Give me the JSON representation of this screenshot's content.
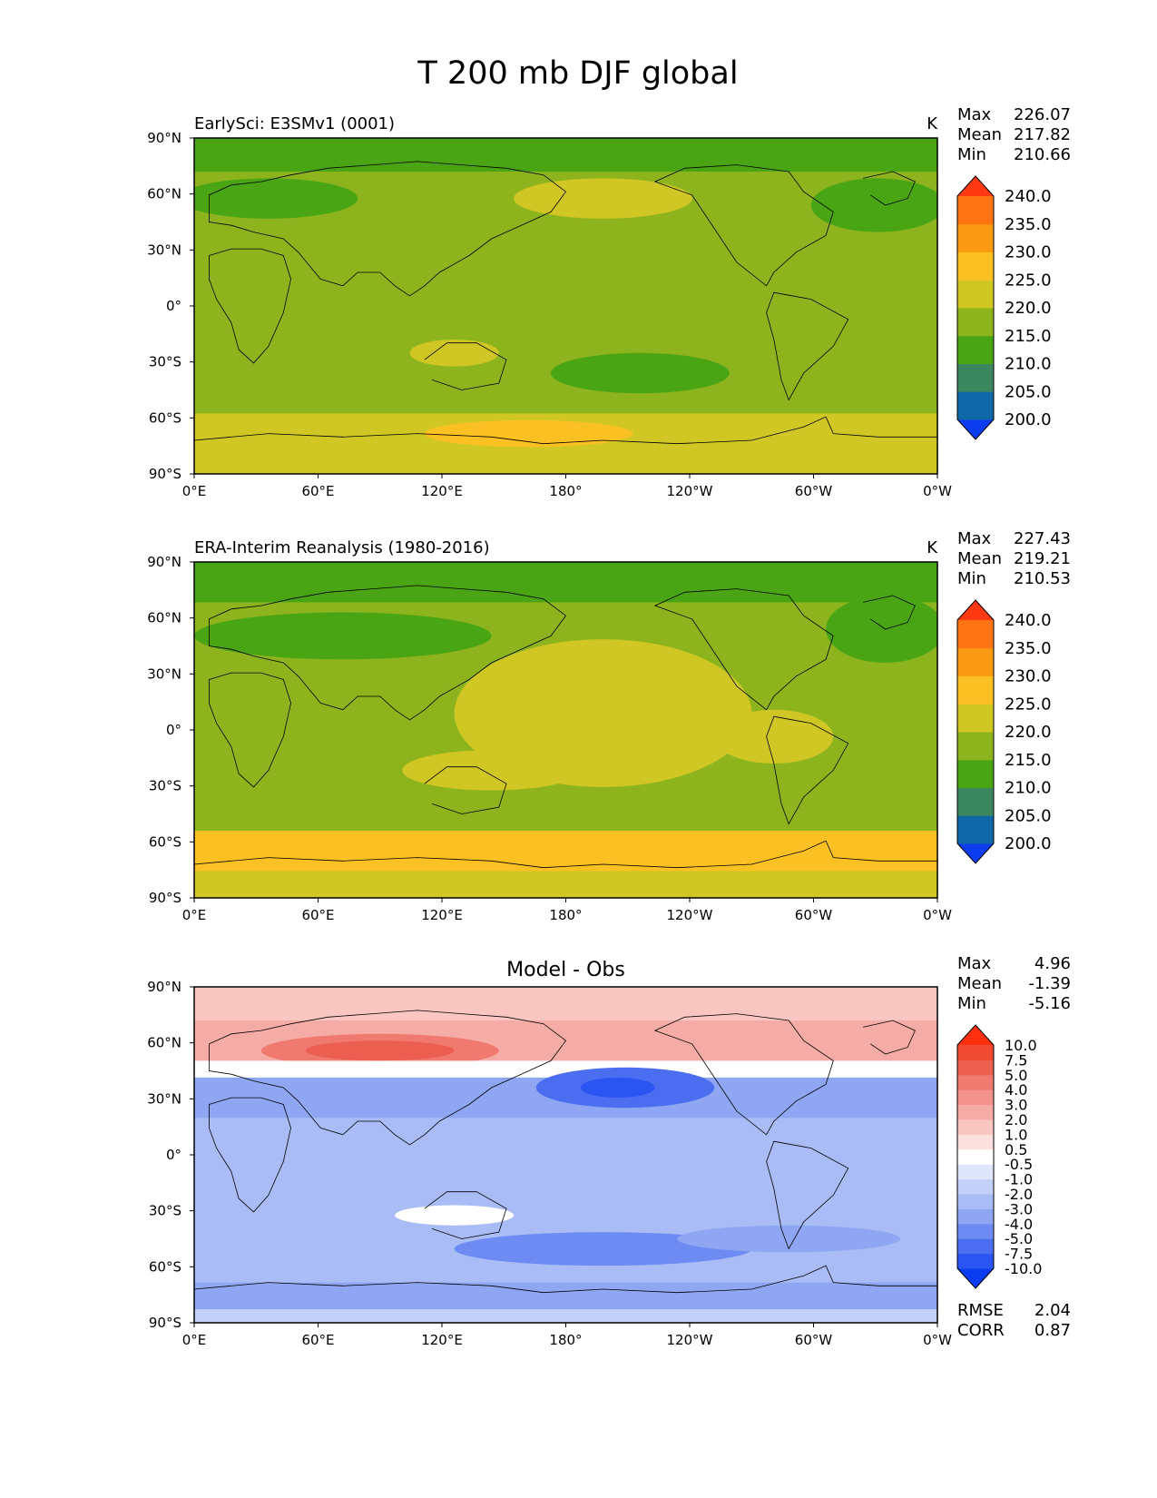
{
  "title": "T 200 mb DJF global",
  "x_ticks": [
    "0°E",
    "60°E",
    "120°E",
    "180°",
    "120°W",
    "60°W",
    "0°W"
  ],
  "y_ticks": [
    "90°N",
    "60°N",
    "30°N",
    "0°",
    "30°S",
    "60°S",
    "90°S"
  ],
  "stat_labels": {
    "max": "Max",
    "mean": "Mean",
    "min": "Min",
    "rmse": "RMSE",
    "corr": "CORR"
  },
  "panels": [
    {
      "id": "test",
      "left_title": "EarlySci: E3SMv1 (0001)",
      "right_title": "K",
      "center_title": "",
      "stats": {
        "max": "226.07",
        "mean": "217.82",
        "min": "210.66"
      },
      "colorbar": "abs"
    },
    {
      "id": "ref",
      "left_title": "ERA-Interim Reanalysis (1980-2016)",
      "right_title": "K",
      "center_title": "",
      "stats": {
        "max": "227.43",
        "mean": "219.21",
        "min": "210.53"
      },
      "colorbar": "abs"
    },
    {
      "id": "diff",
      "left_title": "",
      "right_title": "",
      "center_title": "Model - Obs",
      "stats": {
        "max": "4.96",
        "mean": "-1.39",
        "min": "-5.16"
      },
      "extra_stats": {
        "rmse": "2.04",
        "corr": "0.87"
      },
      "colorbar": "diff"
    }
  ],
  "colorbars": {
    "abs": {
      "colors": [
        "#0b3cf0",
        "#0f67a8",
        "#3a8760",
        "#4aa515",
        "#8db41d",
        "#d0c724",
        "#fbc123",
        "#fd9a14",
        "#fe7312",
        "#ff3a12"
      ],
      "labels": [
        "200.0",
        "205.0",
        "210.0",
        "215.0",
        "220.0",
        "225.0",
        "230.0",
        "235.0",
        "240.0"
      ]
    },
    "diff": {
      "colors": [
        "#0b3cf0",
        "#2b55f3",
        "#4b6ef0",
        "#6d8bf2",
        "#8fa6f3",
        "#a9bcf5",
        "#c3d0f8",
        "#dfe6fa",
        "#ffffff",
        "#fbe0de",
        "#f9c6c2",
        "#f6aca6",
        "#f3928a",
        "#f07a6f",
        "#ec5f50",
        "#f04a33",
        "#ff3010"
      ],
      "labels": [
        "-10.0",
        "-7.5",
        "-5.0",
        "-4.0",
        "-3.0",
        "-2.0",
        "-1.0",
        "-0.5",
        "0.5",
        "1.0",
        "2.0",
        "3.0",
        "4.0",
        "5.0",
        "7.5",
        "10.0"
      ]
    }
  },
  "chart_data": [
    {
      "type": "heatmap",
      "title": "EarlySci: E3SMv1 (0001)",
      "units": "K",
      "xlabel": "",
      "ylabel": "",
      "x_ticks": [
        "0°E",
        "60°E",
        "120°E",
        "180°",
        "120°W",
        "60°W",
        "0°W"
      ],
      "y_ticks": [
        "90°N",
        "60°N",
        "30°N",
        "0°",
        "30°S",
        "60°S",
        "90°S"
      ],
      "xlim": [
        0,
        360
      ],
      "ylim": [
        -90,
        90
      ],
      "levels": [
        200,
        205,
        210,
        215,
        220,
        225,
        230,
        235,
        240
      ],
      "max": 226.07,
      "mean": 217.82,
      "min": 210.66
    },
    {
      "type": "heatmap",
      "title": "ERA-Interim Reanalysis (1980-2016)",
      "units": "K",
      "xlabel": "",
      "ylabel": "",
      "x_ticks": [
        "0°E",
        "60°E",
        "120°E",
        "180°",
        "120°W",
        "60°W",
        "0°W"
      ],
      "y_ticks": [
        "90°N",
        "60°N",
        "30°N",
        "0°",
        "30°S",
        "60°S",
        "90°S"
      ],
      "xlim": [
        0,
        360
      ],
      "ylim": [
        -90,
        90
      ],
      "levels": [
        200,
        205,
        210,
        215,
        220,
        225,
        230,
        235,
        240
      ],
      "max": 227.43,
      "mean": 219.21,
      "min": 210.53
    },
    {
      "type": "heatmap",
      "title": "Model - Obs",
      "units": "K",
      "xlabel": "",
      "ylabel": "",
      "x_ticks": [
        "0°E",
        "60°E",
        "120°E",
        "180°",
        "120°W",
        "60°W",
        "0°W"
      ],
      "y_ticks": [
        "90°N",
        "60°N",
        "30°N",
        "0°",
        "30°S",
        "60°S",
        "90°S"
      ],
      "xlim": [
        0,
        360
      ],
      "ylim": [
        -90,
        90
      ],
      "levels": [
        -10,
        -7.5,
        -5,
        -4,
        -3,
        -2,
        -1,
        -0.5,
        0.5,
        1,
        2,
        3,
        4,
        5,
        7.5,
        10
      ],
      "max": 4.96,
      "mean": -1.39,
      "min": -5.16,
      "rmse": 2.04,
      "corr": 0.87
    }
  ]
}
